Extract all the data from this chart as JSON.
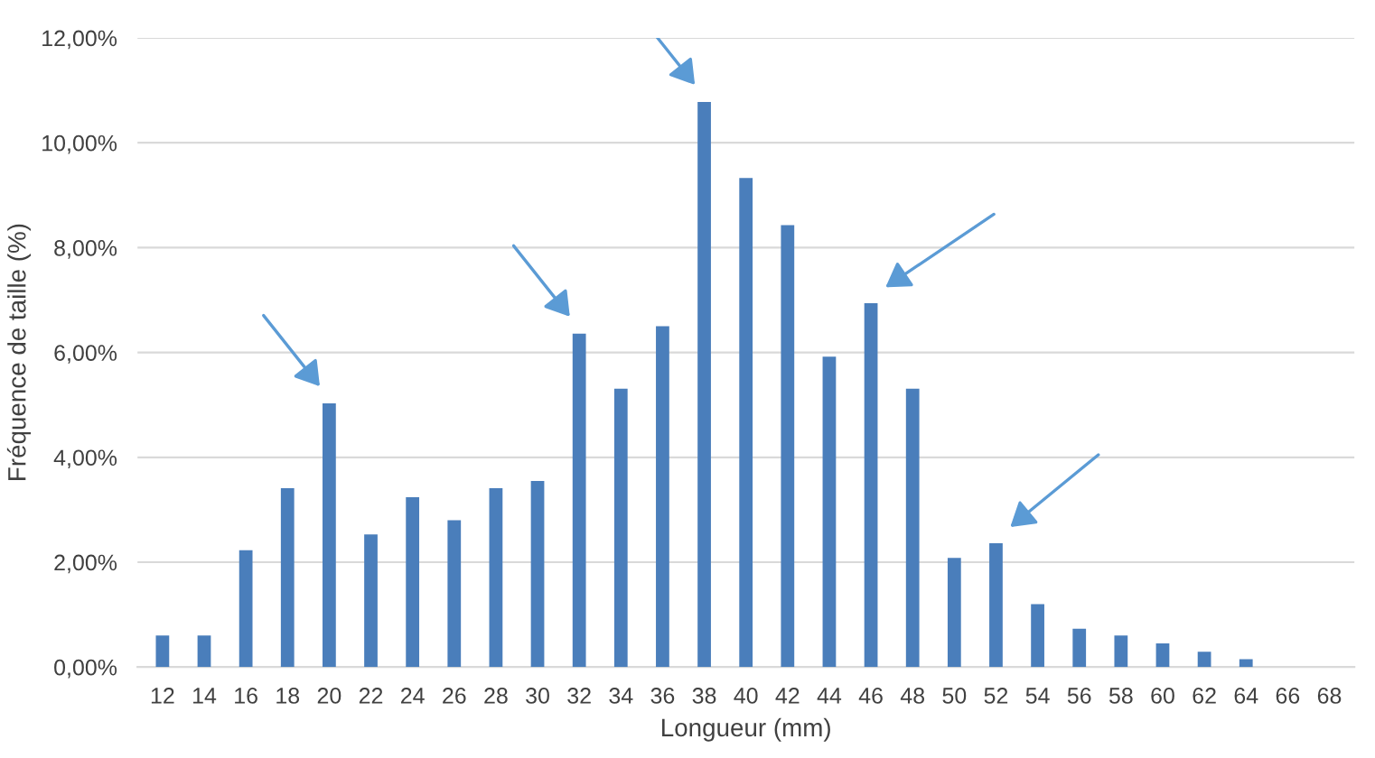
{
  "chart_data": {
    "type": "bar",
    "xlabel": "Longueur (mm)",
    "ylabel": "Fréquence de taille (%)",
    "categories": [
      "12",
      "14",
      "16",
      "18",
      "20",
      "22",
      "24",
      "26",
      "28",
      "30",
      "32",
      "34",
      "36",
      "38",
      "40",
      "42",
      "44",
      "46",
      "48",
      "50",
      "52",
      "54",
      "56",
      "58",
      "60",
      "62",
      "64",
      "66",
      "68"
    ],
    "values": [
      0.6,
      0.6,
      2.23,
      3.41,
      5.03,
      2.53,
      3.24,
      2.8,
      3.41,
      3.55,
      6.36,
      5.31,
      6.5,
      10.78,
      9.33,
      8.43,
      5.92,
      6.94,
      5.31,
      2.08,
      2.36,
      1.2,
      0.73,
      0.6,
      0.45,
      0.29,
      0.15,
      0,
      0
    ],
    "color": "#4a7ebb",
    "ylim": [
      0,
      12
    ],
    "yticks": [
      {
        "value": 0,
        "label": "0,00%"
      },
      {
        "value": 2,
        "label": "2,00%"
      },
      {
        "value": 4,
        "label": "4,00%"
      },
      {
        "value": 6,
        "label": "6,00%"
      },
      {
        "value": 8,
        "label": "8,00%"
      },
      {
        "value": 10,
        "label": "10,00%"
      },
      {
        "value": 12,
        "label": "12,00%"
      }
    ],
    "grid": "y"
  }
}
